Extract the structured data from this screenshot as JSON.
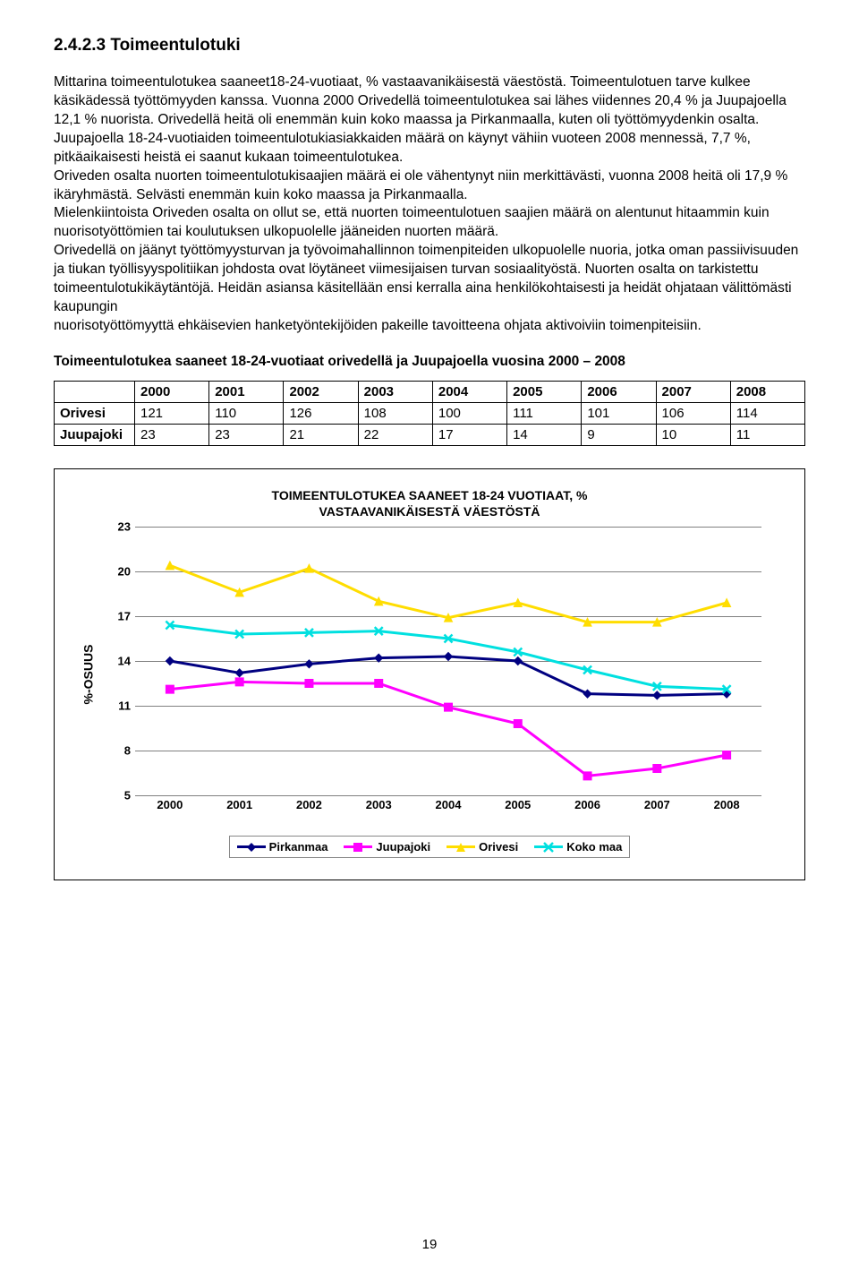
{
  "heading": "2.4.2.3 Toimeentulotuki",
  "body_paragraphs": [
    "Mittarina toimeentulotukea saaneet18-24-vuotiaat, % vastaavanikäisestä väestöstä. Toimeentulotuen tarve kulkee käsikädessä työttömyyden kanssa. Vuonna 2000 Orivedellä toimeentulotukea sai lähes viidennes 20,4 % ja Juupajoella 12,1 % nuorista. Orivedellä heitä oli enemmän kuin koko maassa ja Pirkanmaalla, kuten oli työttömyydenkin osalta. Juupajoella 18-24-vuotiaiden toimeentulotukiasiakkaiden määrä on käynyt vähiin vuoteen 2008 mennessä, 7,7 %, pitkäaikaisesti heistä ei saanut kukaan toimeentulotukea.",
    "Oriveden osalta nuorten toimeentulotukisaajien määrä ei ole vähentynyt niin merkittävästi, vuonna 2008 heitä oli 17,9 % ikäryhmästä. Selvästi enemmän kuin koko maassa ja Pirkanmaalla.",
    "Mielenkiintoista Oriveden osalta on ollut se, että nuorten toimeentulotuen saajien määrä on alentunut hitaammin kuin nuorisotyöttömien tai koulutuksen ulkopuolelle jääneiden nuorten määrä.",
    " Orivedellä on  jäänyt työttömyysturvan ja työvoimahallinnon toimenpiteiden ulkopuolelle nuoria, jotka oman passiivisuuden ja tiukan työllisyyspolitiikan johdosta ovat löytäneet viimesijaisen turvan sosiaalityöstä. Nuorten osalta on tarkistettu toimeentulotukikäytäntöjä. Heidän asiansa käsitellään ensi  kerralla aina henkilökohtaisesti ja heidät ohjataan välittömästi  kaupungin",
    "nuorisotyöttömyyttä ehkäisevien hanketyöntekijöiden pakeille tavoitteena ohjata aktivoiviin toimenpiteisiin."
  ],
  "table_caption": "Toimeentulotukea saaneet 18-24-vuotiaat orivedellä ja Juupajoella vuosina 2000 – 2008",
  "table": {
    "columns": [
      "",
      "2000",
      "2001",
      "2002",
      "2003",
      "2004",
      "2005",
      "2006",
      "2007",
      "2008"
    ],
    "rows": [
      [
        "Orivesi",
        "121",
        "110",
        "126",
        "108",
        "100",
        "111",
        "101",
        "106",
        "114"
      ],
      [
        "Juupajoki",
        "23",
        "23",
        "21",
        "22",
        "17",
        "14",
        "9",
        "10",
        "11"
      ]
    ]
  },
  "chart": {
    "type": "line",
    "title_line1": "TOIMEENTULOTUKEA SAANEET 18-24 VUOTIAAT, %",
    "title_line2": "VASTAAVANIKÄISESTÄ VÄESTÖSTÄ",
    "ylabel": "%-OSUUS",
    "ylim": [
      5,
      23
    ],
    "ytick_step": 3,
    "yticks": [
      5,
      8,
      11,
      14,
      17,
      20,
      23
    ],
    "x_categories": [
      "2000",
      "2001",
      "2002",
      "2003",
      "2004",
      "2005",
      "2006",
      "2007",
      "2008"
    ],
    "grid_color": "#808080",
    "background_color": "#ffffff",
    "line_width": 3,
    "marker_size": 9,
    "series": [
      {
        "name": "Pirkanmaa",
        "color": "#000080",
        "marker": "diamond",
        "values": [
          14.0,
          13.2,
          13.8,
          14.2,
          14.3,
          14.0,
          11.8,
          11.7,
          11.8
        ]
      },
      {
        "name": "Juupajoki",
        "color": "#ff00ff",
        "marker": "square",
        "values": [
          12.1,
          12.6,
          12.5,
          12.5,
          10.9,
          9.8,
          6.3,
          6.8,
          7.7
        ]
      },
      {
        "name": "Orivesi",
        "color": "#ffdd00",
        "marker": "triangle",
        "values": [
          20.4,
          18.6,
          20.2,
          18.0,
          16.9,
          17.9,
          16.6,
          16.6,
          17.9
        ]
      },
      {
        "name": "Koko maa",
        "color": "#00e0e0",
        "marker": "x",
        "values": [
          16.4,
          15.8,
          15.9,
          16.0,
          15.5,
          14.6,
          13.4,
          12.3,
          12.1
        ]
      }
    ]
  },
  "page_number": "19"
}
